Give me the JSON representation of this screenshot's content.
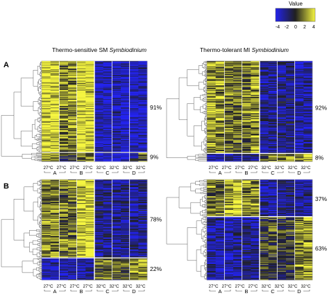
{
  "legend": {
    "title": "Value",
    "ticks": [
      "-4",
      "-2",
      "0",
      "2",
      "4"
    ],
    "colors": {
      "low": "#2222ee",
      "mid": "#202020",
      "high": "#f5f540"
    }
  },
  "titles": {
    "left": {
      "main": "Thermo-sensitive SM ",
      "italic": "Symbiodinium"
    },
    "right": {
      "main": "Thermo-tolerant MI ",
      "italic": "Symbiodinium"
    }
  },
  "row_labels": [
    "A",
    "B"
  ],
  "conditions": [
    "27°C",
    "27°C",
    "27°C",
    "27°C",
    "32°C",
    "32°C",
    "32°C",
    "32°C"
  ],
  "groups": [
    "A",
    "B",
    "C",
    "D"
  ],
  "panels": [
    {
      "id": "A-left",
      "percent_labels": [
        "91%",
        "9%"
      ],
      "clusters": [
        {
          "fraction": 0.91,
          "columns": [
            0.92,
            0.9,
            0.45,
            0.5,
            0.92,
            0.94,
            -0.78,
            -0.78,
            -0.72,
            -0.8,
            -0.82,
            -0.76
          ]
        },
        {
          "fraction": 0.09,
          "columns": [
            0.7,
            0.65,
            -0.1,
            0.1,
            0.3,
            0.35,
            -0.95,
            -0.7,
            -0.8,
            -0.85,
            -0.4,
            0.3
          ]
        }
      ]
    },
    {
      "id": "A-right",
      "percent_labels": [
        "92%",
        "8%"
      ],
      "clusters": [
        {
          "fraction": 0.92,
          "columns": [
            0.55,
            0.5,
            0.4,
            0.3,
            0.35,
            0.55,
            -0.55,
            -0.6,
            -0.5,
            -0.45,
            -0.7,
            -0.65
          ]
        },
        {
          "fraction": 0.08,
          "columns": [
            -0.6,
            -0.55,
            -0.5,
            -0.6,
            -0.5,
            -0.45,
            0.3,
            0.5,
            0.35,
            0.4,
            0.45,
            0.7
          ]
        }
      ]
    },
    {
      "id": "B-left",
      "percent_labels": [
        "78%",
        "22%"
      ],
      "clusters": [
        {
          "fraction": 0.78,
          "columns": [
            0.45,
            0.5,
            0.3,
            0.35,
            0.85,
            0.9,
            -0.45,
            -0.5,
            -0.55,
            -0.5,
            -0.5,
            -0.45
          ]
        },
        {
          "fraction": 0.22,
          "columns": [
            -0.7,
            -0.65,
            -0.6,
            -0.55,
            -0.7,
            -0.65,
            0.25,
            0.3,
            0.15,
            0.2,
            0.55,
            0.6
          ]
        }
      ]
    },
    {
      "id": "B-right",
      "percent_labels": [
        "37%",
        "63%"
      ],
      "clusters": [
        {
          "fraction": 0.37,
          "columns": [
            0.35,
            0.3,
            0.55,
            0.85,
            0.5,
            0.45,
            -0.55,
            -0.6,
            -0.5,
            -0.45,
            -0.6,
            -0.55
          ]
        },
        {
          "fraction": 0.63,
          "columns": [
            -0.55,
            -0.6,
            -0.65,
            -0.6,
            -0.5,
            -0.55,
            0.1,
            0.15,
            0.05,
            0.1,
            0.5,
            0.55
          ]
        }
      ]
    }
  ]
}
